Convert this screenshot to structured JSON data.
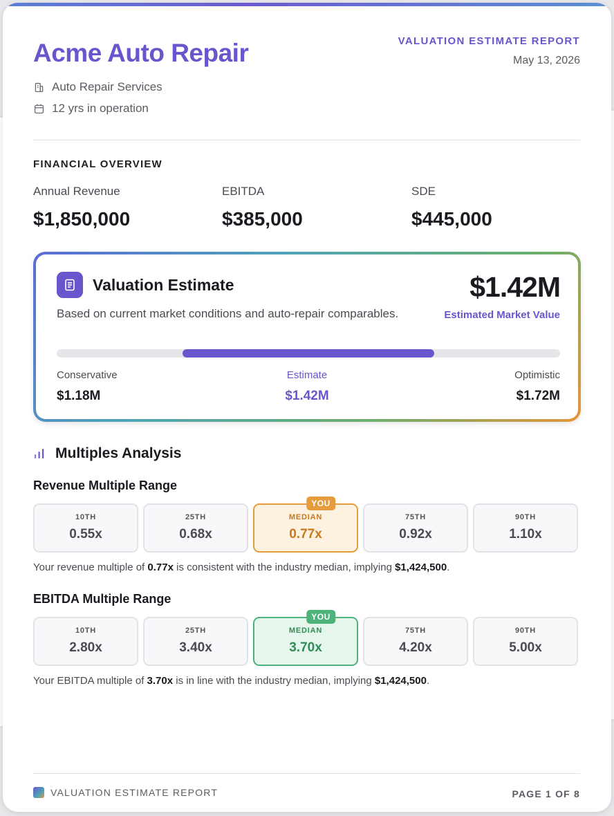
{
  "header": {
    "company": "Acme Auto Repair",
    "industry": "Auto Repair Services",
    "years": "12 yrs in operation",
    "report_label": "VALUATION ESTIMATE REPORT",
    "date": "May 13, 2026"
  },
  "financial": {
    "section_label": "FINANCIAL OVERVIEW",
    "items": [
      {
        "label": "Annual Revenue",
        "value": "$1,850,000"
      },
      {
        "label": "EBITDA",
        "value": "$385,000"
      },
      {
        "label": "SDE",
        "value": "$445,000"
      }
    ]
  },
  "valuation": {
    "title": "Valuation Estimate",
    "subtitle": "Based on current market conditions and auto-repair comparables.",
    "big_value": "$1.42M",
    "big_label": "Estimated Market Value",
    "range": {
      "start": 0.25,
      "end": 0.75
    },
    "conservative": {
      "label": "Conservative",
      "value": "$1.18M"
    },
    "estimate": {
      "label": "Estimate",
      "value": "$1.42M"
    },
    "optimistic": {
      "label": "Optimistic",
      "value": "$1.72M"
    }
  },
  "multiples": {
    "title": "Multiples Analysis",
    "badge": "YOU",
    "revenue": {
      "title": "Revenue Multiple Range",
      "tiles": [
        {
          "pct": "10TH",
          "value": "0.55x"
        },
        {
          "pct": "25TH",
          "value": "0.68x"
        },
        {
          "pct": "MEDIAN",
          "value": "0.77x"
        },
        {
          "pct": "75TH",
          "value": "0.92x"
        },
        {
          "pct": "90TH",
          "value": "1.10x"
        }
      ],
      "note_a": "Your revenue multiple of ",
      "note_b": "0.77x",
      "note_c": " is consistent with the industry median, implying ",
      "note_d": "$1,424,500",
      "note_e": "."
    },
    "ebitda": {
      "title": "EBITDA Multiple Range",
      "tiles": [
        {
          "pct": "10TH",
          "value": "2.80x"
        },
        {
          "pct": "25TH",
          "value": "3.40x"
        },
        {
          "pct": "MEDIAN",
          "value": "3.70x"
        },
        {
          "pct": "75TH",
          "value": "4.20x"
        },
        {
          "pct": "90TH",
          "value": "5.00x"
        }
      ],
      "note_a": "Your EBITDA multiple of ",
      "note_b": "3.70x",
      "note_c": " is in line with the industry median, implying ",
      "note_d": "$1,424,500",
      "note_e": "."
    }
  },
  "footer": {
    "left": "VALUATION ESTIMATE REPORT",
    "right": "PAGE 1 OF 8"
  },
  "colors": {
    "accent": "#6a55cc",
    "orange": "#e69b3c",
    "green": "#4db37a"
  }
}
